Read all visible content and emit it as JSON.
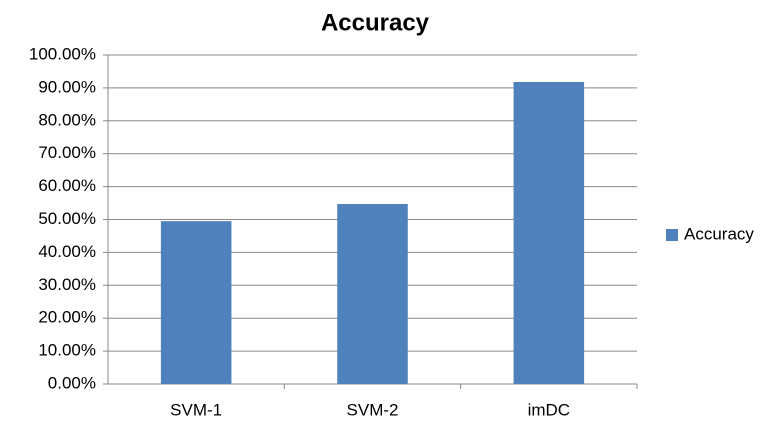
{
  "chart_data": {
    "type": "bar",
    "title": "Accuracy",
    "categories": [
      "SVM-1",
      "SVM-2",
      "imDC"
    ],
    "series": [
      {
        "name": "Accuracy",
        "color": "#4f81bd",
        "values": [
          49.5,
          54.7,
          91.8
        ]
      }
    ],
    "ylim": [
      0,
      100
    ],
    "yticks": [
      {
        "value": 0,
        "label": "0.00%"
      },
      {
        "value": 10,
        "label": "10.00%"
      },
      {
        "value": 20,
        "label": "20.00%"
      },
      {
        "value": 30,
        "label": "30.00%"
      },
      {
        "value": 40,
        "label": "40.00%"
      },
      {
        "value": 50,
        "label": "50.00%"
      },
      {
        "value": 60,
        "label": "60.00%"
      },
      {
        "value": 70,
        "label": "70.00%"
      },
      {
        "value": 80,
        "label": "80.00%"
      },
      {
        "value": 90,
        "label": "90.00%"
      },
      {
        "value": 100,
        "label": "100.00%"
      }
    ],
    "grid": true,
    "legend": "right"
  }
}
